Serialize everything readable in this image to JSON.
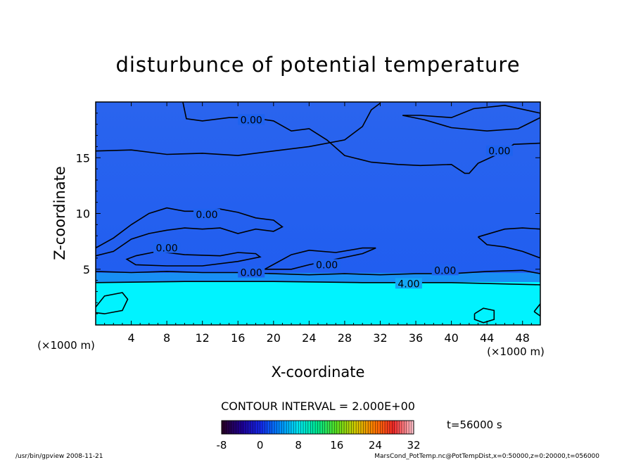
{
  "chart_data": {
    "type": "heatmap",
    "title": "disturbunce of potential temperature",
    "xlabel": "X-coordinate",
    "ylabel": "Z-coordinate",
    "x_unit_left": "(×1000 m)",
    "x_unit_right": "(×1000 m)",
    "xlim": [
      0,
      50
    ],
    "ylim": [
      0,
      20
    ],
    "x_ticks": [
      4,
      8,
      12,
      16,
      20,
      24,
      28,
      32,
      36,
      40,
      44,
      48
    ],
    "x_tick_labels": [
      "4",
      "8",
      "12",
      "16",
      "20",
      "24",
      "28",
      "32",
      "36",
      "40",
      "44",
      "48"
    ],
    "y_ticks": [
      5,
      10,
      15
    ],
    "y_tick_labels": [
      "5",
      "10",
      "15"
    ],
    "contour_interval_text": "CONTOUR INTERVAL = 2.000E+00",
    "time_text": "t=56000 s",
    "colorbar": {
      "range": [
        -8,
        32
      ],
      "tick_values": [
        -8,
        0,
        8,
        16,
        24,
        32
      ],
      "tick_labels": [
        "-8",
        "0",
        "8",
        "16",
        "24",
        "32"
      ]
    },
    "regions": [
      {
        "z_range": [
          0,
          3.8
        ],
        "value": 4,
        "color": "#00f5ff"
      },
      {
        "z_range": [
          3.8,
          20
        ],
        "value": 0,
        "color": "#1a6cf0"
      }
    ],
    "contour_labels": [
      {
        "text": "0.00",
        "x": 17.5,
        "z": 18.4
      },
      {
        "text": "0.00",
        "x": 45.4,
        "z": 15.6
      },
      {
        "text": "0.00",
        "x": 12.5,
        "z": 9.9
      },
      {
        "text": "0.00",
        "x": 8.0,
        "z": 6.9
      },
      {
        "text": "0.00",
        "x": 17.5,
        "z": 4.7
      },
      {
        "text": "0.00",
        "x": 26.0,
        "z": 5.4
      },
      {
        "text": "0.00",
        "x": 39.3,
        "z": 4.9
      },
      {
        "text": "4.00",
        "x": 35.2,
        "z": 3.7
      }
    ],
    "contour_lines": [
      [
        [
          0,
          15.6
        ],
        [
          4,
          15.7
        ],
        [
          8,
          15.3
        ],
        [
          12,
          15.4
        ],
        [
          16,
          15.2
        ],
        [
          20,
          15.6
        ],
        [
          24,
          16.0
        ],
        [
          28,
          16.6
        ],
        [
          30,
          17.8
        ],
        [
          31,
          19.3
        ],
        [
          32,
          19.9
        ]
      ],
      [
        [
          9.8,
          20
        ],
        [
          10.2,
          18.5
        ],
        [
          12,
          18.3
        ],
        [
          15,
          18.6
        ],
        [
          17.5,
          18.6
        ],
        [
          20,
          18.3
        ],
        [
          22,
          17.4
        ],
        [
          24,
          17.6
        ],
        [
          26,
          16.6
        ],
        [
          28,
          15.2
        ],
        [
          31,
          14.6
        ],
        [
          34,
          14.4
        ],
        [
          36.5,
          14.3
        ],
        [
          40,
          14.4
        ],
        [
          41.5,
          13.6
        ],
        [
          42,
          13.6
        ],
        [
          43,
          14.5
        ],
        [
          46,
          15.6
        ],
        [
          47,
          16.2
        ],
        [
          50,
          16.3
        ]
      ],
      [
        [
          34.5,
          18.8
        ],
        [
          37,
          18.4
        ],
        [
          40,
          17.7
        ],
        [
          44,
          17.4
        ],
        [
          47.5,
          17.6
        ],
        [
          49,
          18.2
        ],
        [
          50,
          18.6
        ],
        [
          50,
          19.0
        ],
        [
          46,
          19.7
        ],
        [
          42.5,
          19.4
        ],
        [
          40,
          18.6
        ],
        [
          36.5,
          18.8
        ],
        [
          34.5,
          18.8
        ]
      ],
      [
        [
          0,
          6.9
        ],
        [
          2,
          7.8
        ],
        [
          4,
          9.0
        ],
        [
          6,
          10.0
        ],
        [
          8,
          10.5
        ],
        [
          10,
          10.2
        ],
        [
          12,
          10.2
        ],
        [
          14,
          10.4
        ],
        [
          16,
          10.1
        ],
        [
          18,
          9.6
        ],
        [
          20,
          9.4
        ],
        [
          21,
          8.8
        ],
        [
          20,
          8.4
        ],
        [
          18,
          8.6
        ],
        [
          16,
          8.2
        ],
        [
          14,
          8.7
        ],
        [
          12,
          8.6
        ],
        [
          10,
          8.7
        ],
        [
          8,
          8.5
        ],
        [
          6,
          8.2
        ],
        [
          4,
          7.7
        ],
        [
          2,
          6.6
        ],
        [
          0,
          6.2
        ]
      ],
      [
        [
          4.5,
          6.2
        ],
        [
          7,
          6.6
        ],
        [
          10,
          6.3
        ],
        [
          14,
          6.2
        ],
        [
          16,
          6.5
        ],
        [
          18,
          6.4
        ],
        [
          18.5,
          6.1
        ],
        [
          16,
          5.7
        ],
        [
          12,
          5.3
        ],
        [
          8,
          5.3
        ],
        [
          4.5,
          5.4
        ],
        [
          3.5,
          5.9
        ],
        [
          4.5,
          6.2
        ]
      ],
      [
        [
          0,
          4.8
        ],
        [
          4,
          4.7
        ],
        [
          8,
          4.8
        ],
        [
          12,
          4.7
        ],
        [
          16,
          4.7
        ],
        [
          20,
          4.6
        ],
        [
          24,
          4.5
        ],
        [
          28,
          4.6
        ],
        [
          32,
          4.5
        ],
        [
          36,
          4.6
        ],
        [
          40,
          4.6
        ],
        [
          44,
          4.8
        ],
        [
          48,
          4.9
        ],
        [
          50,
          4.6
        ]
      ],
      [
        [
          19,
          5.0
        ],
        [
          22,
          6.3
        ],
        [
          24,
          6.7
        ],
        [
          27,
          6.5
        ],
        [
          30,
          6.9
        ],
        [
          31.5,
          6.9
        ],
        [
          30,
          6.4
        ],
        [
          27,
          5.9
        ],
        [
          24,
          5.4
        ],
        [
          22,
          5.0
        ],
        [
          19,
          5.0
        ]
      ],
      [
        [
          43,
          7.9
        ],
        [
          46,
          8.6
        ],
        [
          48,
          8.7
        ],
        [
          50,
          8.6
        ],
        [
          50,
          6.0
        ],
        [
          48,
          6.6
        ],
        [
          46,
          7.0
        ],
        [
          44,
          7.2
        ],
        [
          43,
          7.9
        ]
      ],
      [
        [
          0,
          3.8
        ],
        [
          10,
          3.9
        ],
        [
          20,
          3.9
        ],
        [
          30,
          3.8
        ],
        [
          40,
          3.8
        ],
        [
          50,
          3.6
        ]
      ],
      [
        [
          0,
          1.6
        ],
        [
          1,
          2.6
        ],
        [
          3,
          2.9
        ],
        [
          3.6,
          2.3
        ],
        [
          3,
          1.3
        ],
        [
          1,
          1.0
        ],
        [
          0,
          1.1
        ]
      ],
      [
        [
          42.6,
          1.0
        ],
        [
          43.6,
          1.5
        ],
        [
          44.8,
          1.3
        ],
        [
          44.8,
          0.5
        ],
        [
          43.6,
          0.2
        ],
        [
          42.6,
          0.5
        ],
        [
          42.6,
          1.0
        ]
      ],
      [
        [
          49.3,
          1.2
        ],
        [
          50,
          1.9
        ],
        [
          50,
          0.8
        ],
        [
          49.3,
          1.2
        ]
      ]
    ]
  },
  "footer": {
    "left": "/usr/bin/gpview  2008-11-21",
    "right": "MarsCond_PotTemp.nc@PotTempDist,x=0:50000,z=0:20000,t=056000"
  }
}
